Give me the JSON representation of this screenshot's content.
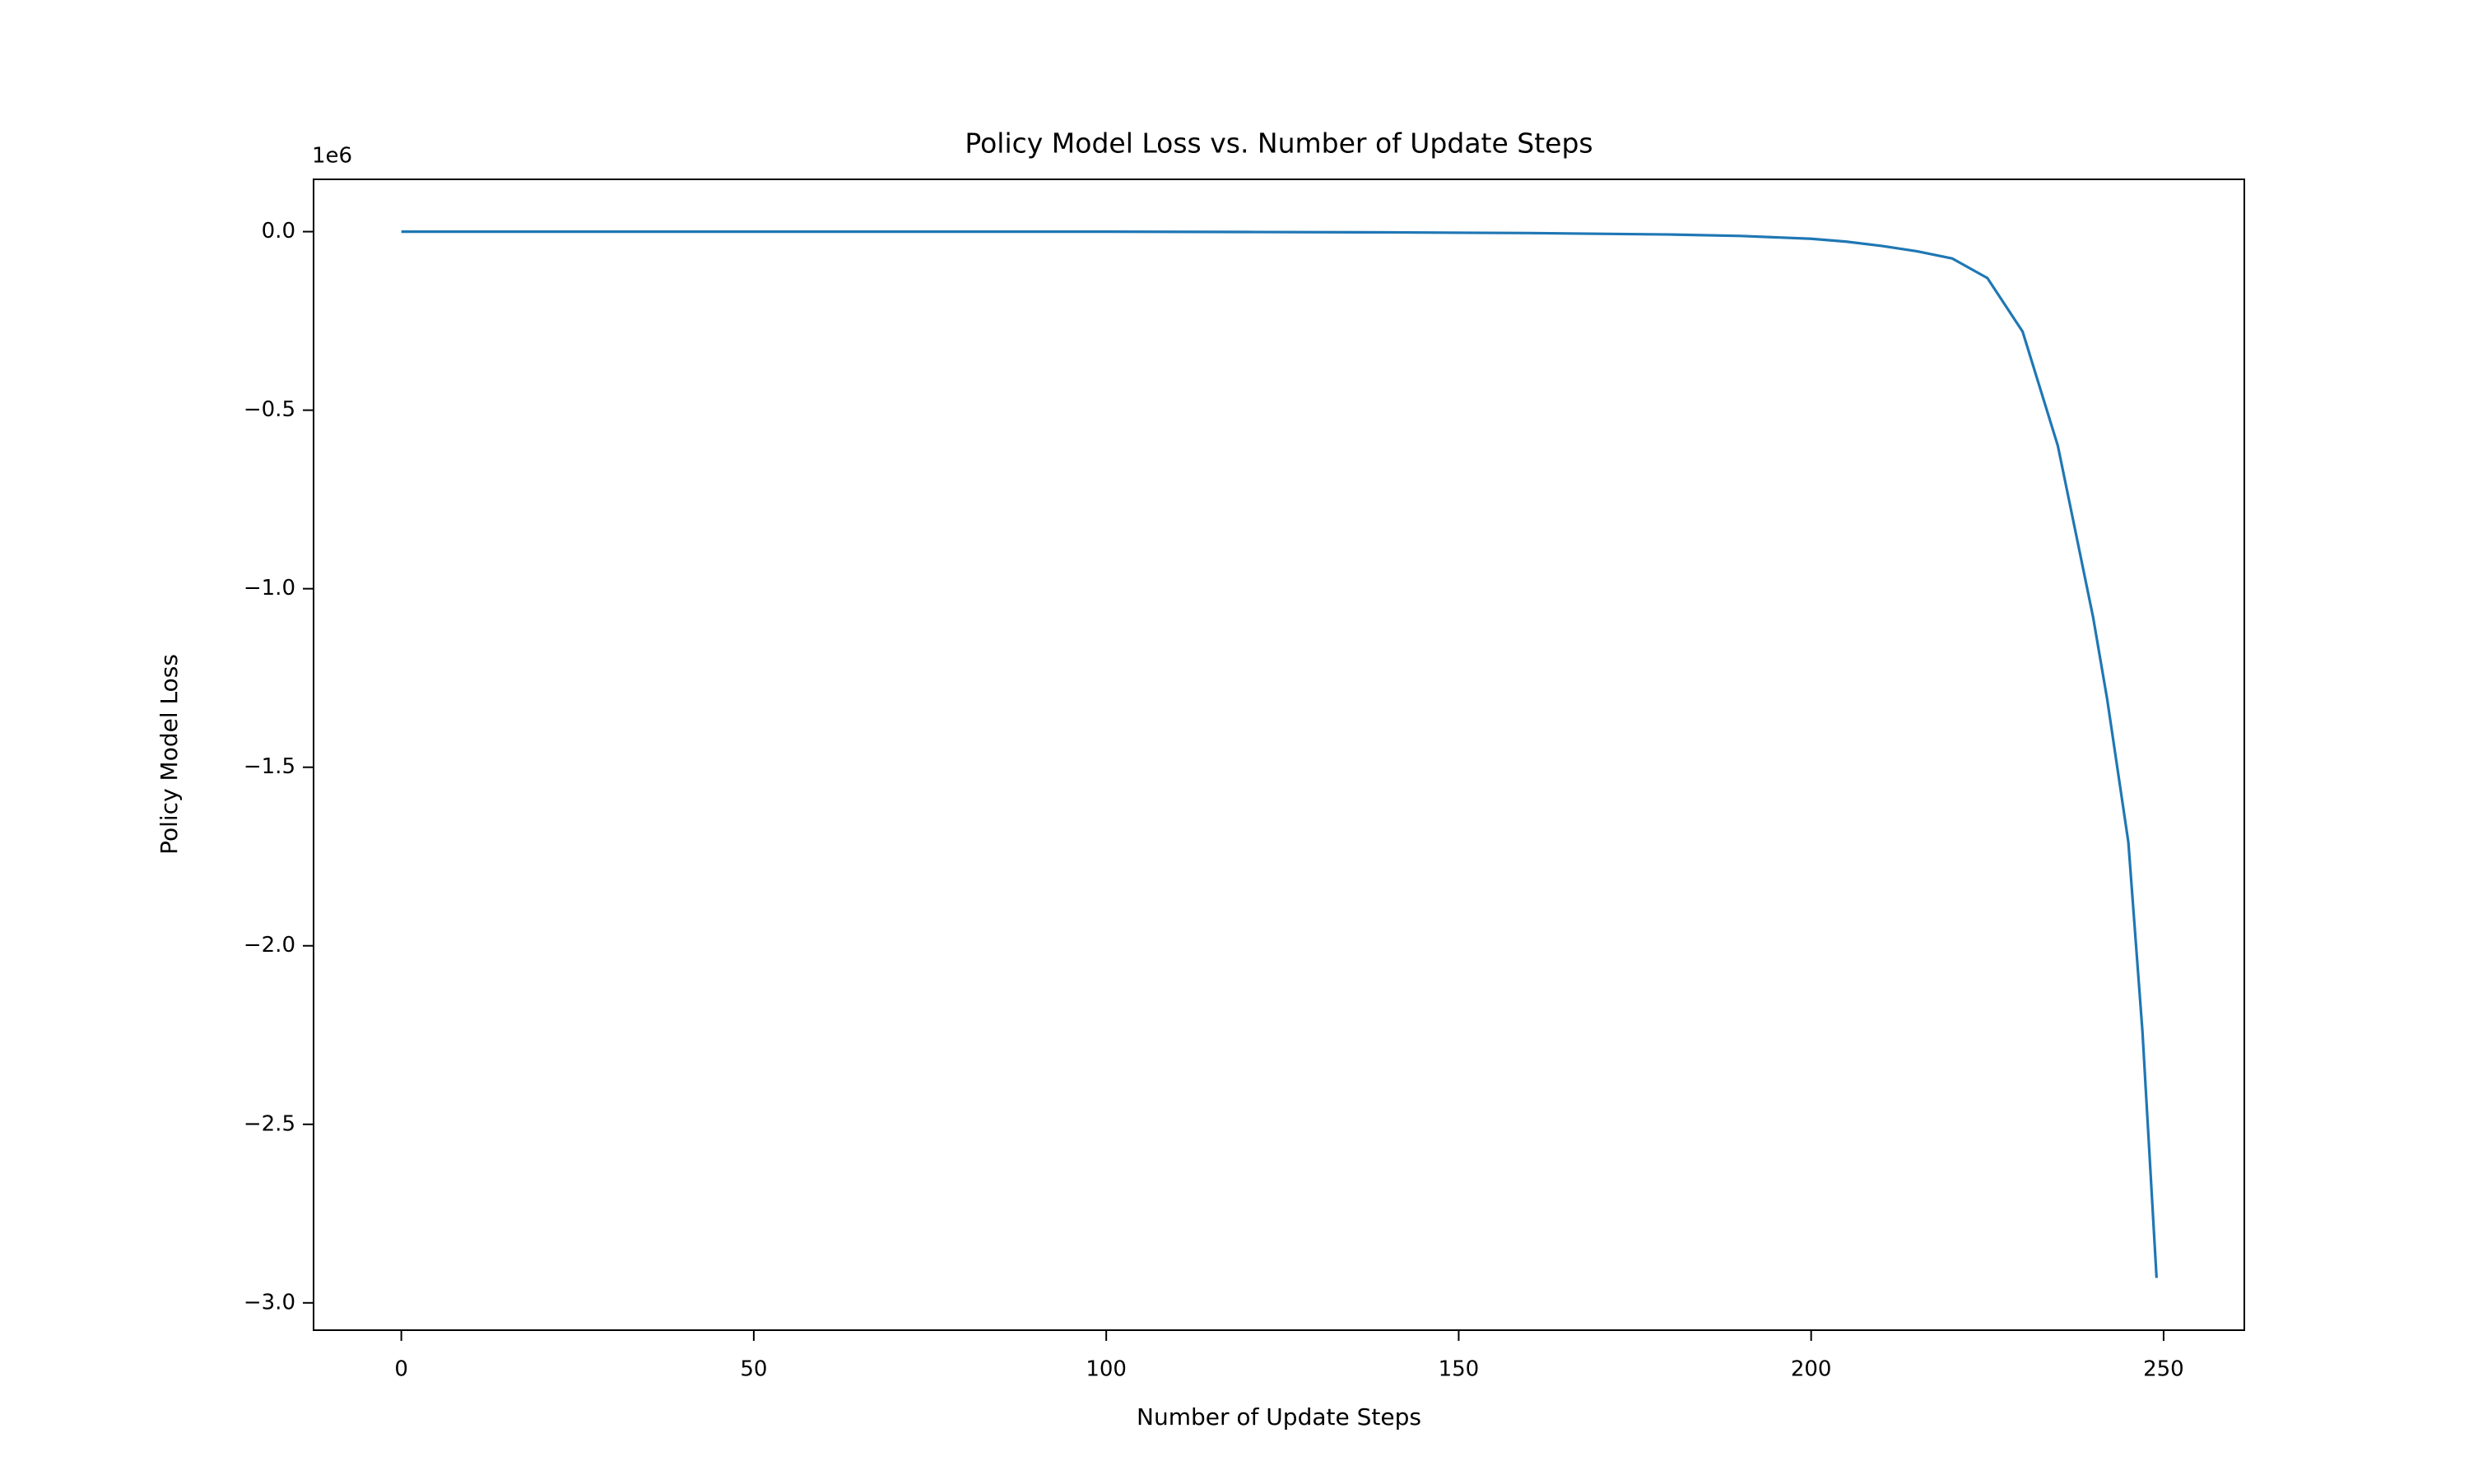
{
  "chart_data": {
    "type": "line",
    "title": "Policy Model Loss vs. Number of Update Steps",
    "x_label": "Number of Update Steps",
    "y_label": "Policy Model Loss",
    "y_offset_label": "1e6",
    "x": [
      0,
      20,
      40,
      60,
      80,
      100,
      120,
      140,
      160,
      180,
      190,
      200,
      205,
      210,
      215,
      220,
      225,
      230,
      235,
      240,
      242,
      245,
      247,
      249
    ],
    "series": [
      {
        "name": "Policy Model Loss",
        "color": "#1f77b4",
        "values": [
          0,
          0,
          0,
          0,
          0,
          0,
          -1000,
          -2000,
          -4000,
          -8000,
          -12000,
          -20000,
          -28000,
          -40000,
          -55000,
          -75000,
          -130000,
          -280000,
          -600000,
          -1080000,
          -1310000,
          -1710000,
          -2240000,
          -2930000
        ]
      }
    ],
    "xlim": [
      -12.45,
      261.45
    ],
    "ylim": [
      -3076500,
      146500
    ],
    "xticks": [
      0,
      50,
      100,
      150,
      200,
      250
    ],
    "yticks": [
      {
        "value": 0,
        "label": "0.0"
      },
      {
        "value": -500000,
        "label": "−0.5"
      },
      {
        "value": -1000000,
        "label": "−1.0"
      },
      {
        "value": -1500000,
        "label": "−1.5"
      },
      {
        "value": -2000000,
        "label": "−2.0"
      },
      {
        "value": -2500000,
        "label": "−2.5"
      },
      {
        "value": -3000000,
        "label": "−3.0"
      }
    ],
    "grid": false
  }
}
